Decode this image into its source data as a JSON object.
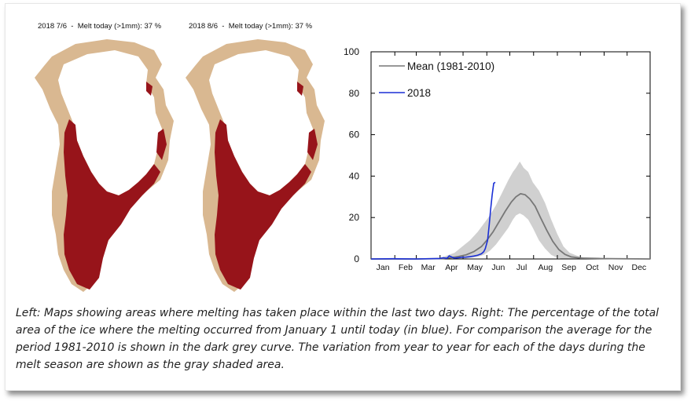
{
  "maps": [
    {
      "date": "2018 7/6",
      "sep": "-",
      "label": "Melt today (>1mm):",
      "value": "37 %"
    },
    {
      "date": "2018 8/6",
      "sep": "-",
      "label": "Melt today (>1mm):",
      "value": "37 %"
    }
  ],
  "colors": {
    "melt": "#97141a",
    "land": "#d9b891",
    "ice": "#ffffff",
    "mean": "#777777",
    "year": "#1a2fd6",
    "band": "#d0d0d0"
  },
  "chart_data": {
    "type": "line",
    "title": "",
    "xlabel": "",
    "ylabel": "",
    "ylim": [
      0,
      100
    ],
    "yticks": [
      0,
      20,
      40,
      60,
      80,
      100
    ],
    "months": [
      "Jan",
      "Feb",
      "Mar",
      "Apr",
      "May",
      "Jun",
      "Jul",
      "Aug",
      "Sep",
      "Oct",
      "Nov",
      "Dec"
    ],
    "legend_position": "top-left",
    "series": [
      {
        "name": "Mean (1981-2010)",
        "x_day": [
          1,
          60,
          95,
          105,
          115,
          125,
          135,
          145,
          152,
          160,
          168,
          176,
          184,
          190,
          196,
          202,
          208,
          215,
          222,
          230,
          238,
          246,
          254,
          262,
          275,
          300,
          330,
          365
        ],
        "values": [
          0,
          0,
          0.2,
          0.6,
          1.2,
          2,
          3.5,
          6,
          9,
          13,
          18,
          23,
          27.5,
          30,
          31.5,
          31,
          29,
          25.5,
          20,
          14,
          8.5,
          4.5,
          2.2,
          1,
          0.4,
          0.2,
          0.1,
          0
        ]
      },
      {
        "name": "2018",
        "x_day": [
          1,
          30,
          60,
          90,
          95,
          100,
          103,
          107,
          110,
          115,
          120,
          125,
          130,
          135,
          140,
          145,
          148,
          150,
          153,
          155,
          157,
          159,
          161,
          163
        ],
        "values": [
          0,
          0.1,
          0,
          0.2,
          0.6,
          0.3,
          1.5,
          0.8,
          0.4,
          0.6,
          0.8,
          0.9,
          1.1,
          1.4,
          1.8,
          2.5,
          3.5,
          5,
          9,
          16,
          24,
          31,
          36.5,
          37
        ]
      }
    ],
    "band": {
      "name": "",
      "x_day": [
        95,
        110,
        120,
        130,
        140,
        148,
        156,
        164,
        172,
        180,
        186,
        190,
        195,
        200,
        206,
        212,
        220,
        228,
        236,
        244,
        252,
        260,
        270,
        280
      ],
      "upper": [
        1,
        3,
        6,
        9,
        13,
        17,
        21,
        26,
        32,
        38,
        42,
        44,
        47,
        44,
        42,
        37,
        33,
        27,
        19,
        12,
        6,
        3,
        1.5,
        0.5
      ],
      "lower": [
        0,
        0,
        0,
        0.5,
        1,
        2,
        4,
        7,
        11,
        15,
        19,
        21,
        22,
        21,
        19,
        15,
        9,
        5,
        2,
        0.5,
        0,
        0,
        0,
        0
      ]
    }
  },
  "caption": "Left: Maps showing areas where melting has taken place within the last two days. Right: The percentage of the total area of the ice where the melting occurred from January 1 until today (in blue). For comparison the average for the period 1981-2010 is shown in the dark grey curve. The variation from year to year for each of the days during the melt season are shown as the gray shaded area."
}
